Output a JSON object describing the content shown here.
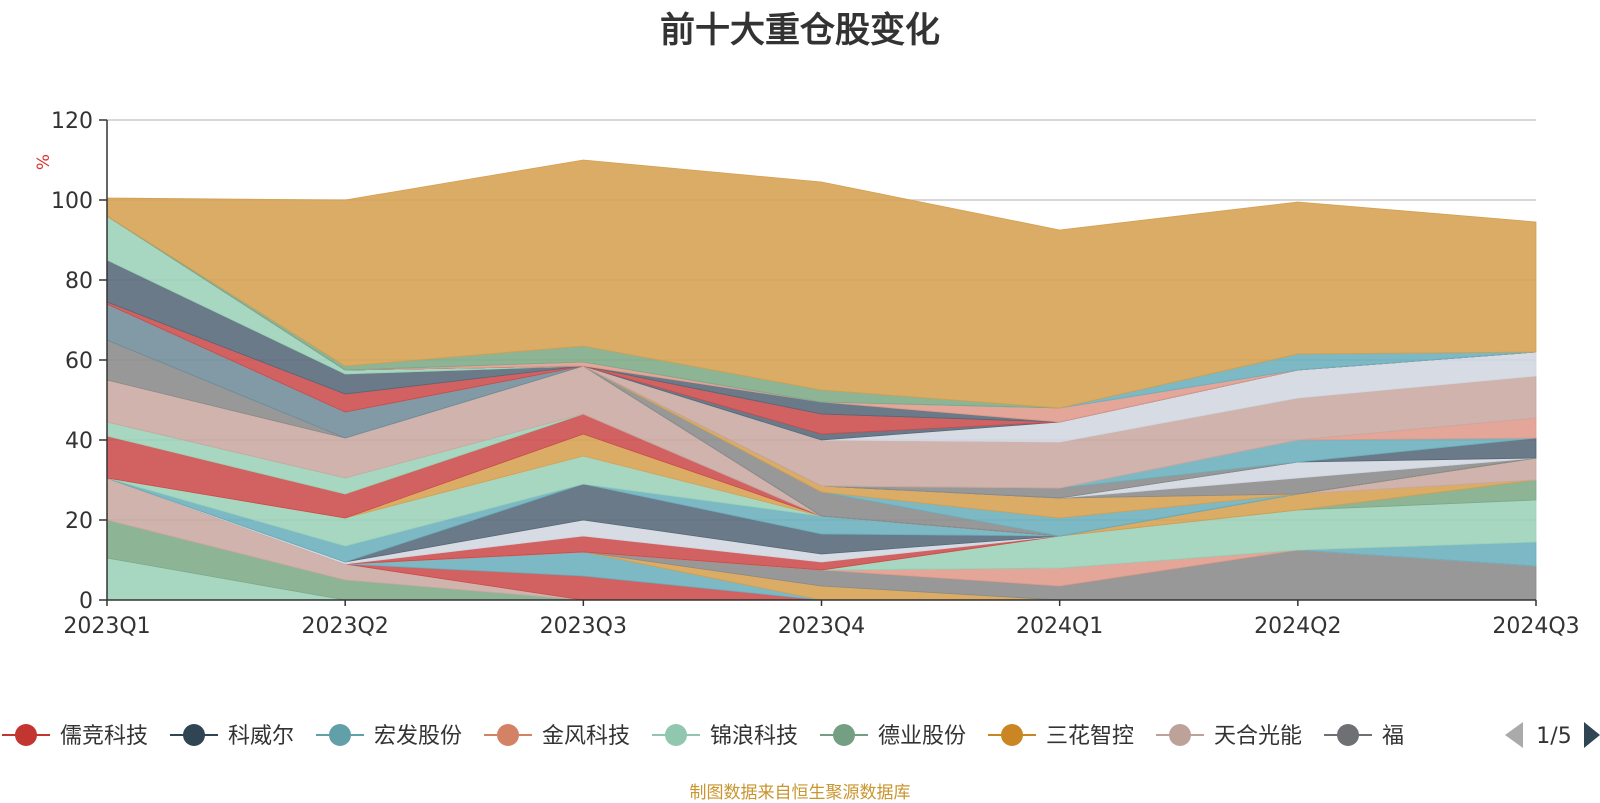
{
  "chart_data": {
    "type": "area",
    "title": "前十大重仓股变化",
    "ylabel": "%",
    "xlabel": "",
    "ylim": [
      0,
      120
    ],
    "yticks": [
      0,
      20,
      40,
      60,
      80,
      100,
      120
    ],
    "grid": true,
    "stacked": true,
    "categories": [
      "2023Q1",
      "2023Q2",
      "2023Q3",
      "2023Q4",
      "2024Q1",
      "2024Q2",
      "2024Q3"
    ],
    "series": [
      {
        "name": "锦浪科技",
        "color": "#9bd2b8",
        "values": [
          10.5,
          0,
          0,
          0,
          0,
          0,
          0
        ]
      },
      {
        "name": "德业股份",
        "color": "#7eaa88",
        "values": [
          9.5,
          5,
          0,
          0,
          0,
          0,
          0
        ]
      },
      {
        "name": "天合光能",
        "color": "#c8a8a0",
        "values": [
          10.5,
          4.0,
          0,
          0,
          0,
          0,
          0
        ]
      },
      {
        "name": "",
        "color": "#cc4c4c",
        "values": [
          0,
          0,
          6,
          0,
          0,
          0,
          0
        ]
      },
      {
        "name": "",
        "color": "#6bafbd",
        "values": [
          0,
          0,
          6,
          0,
          0,
          0,
          0
        ]
      },
      {
        "name": "",
        "color": "#d5a051",
        "values": [
          0,
          0,
          0,
          3.5,
          0,
          0,
          0
        ]
      },
      {
        "name": "",
        "color": "#8a8a8a",
        "values": [
          0,
          0,
          0,
          4,
          3.5,
          12.5,
          8.5
        ]
      },
      {
        "name": "",
        "color": "#e09a8a",
        "values": [
          0,
          0,
          0,
          0,
          4.5,
          0,
          0
        ]
      },
      {
        "name": "",
        "color": "#e09a8a",
        "values": [
          0,
          0,
          0,
          0,
          0,
          0,
          0
        ]
      },
      {
        "name": "",
        "color": "#6bafbd",
        "values": [
          0,
          0,
          0,
          0,
          0,
          0,
          6
        ]
      },
      {
        "name": "",
        "color": "#9bd2b8",
        "values": [
          0,
          0,
          0,
          0,
          8,
          10,
          10.5
        ]
      },
      {
        "name": "",
        "color": "#7eaa88",
        "values": [
          0,
          0,
          0,
          0,
          0,
          0,
          5
        ]
      },
      {
        "name": "",
        "color": "#d5a051",
        "values": [
          0,
          0,
          0,
          0,
          0,
          4,
          0
        ]
      },
      {
        "name": "",
        "color": "#c8a8a0",
        "values": [
          0,
          0,
          0,
          0,
          0,
          0,
          5.5
        ]
      },
      {
        "name": "",
        "color": "#cc4c4c",
        "values": [
          0,
          0,
          4,
          2,
          0,
          0,
          0
        ]
      },
      {
        "name": "",
        "color": "#d0d6e0",
        "values": [
          0,
          0.5,
          4,
          2,
          0,
          0,
          0
        ]
      },
      {
        "name": "",
        "color": "#556877",
        "values": [
          0,
          0,
          9,
          5,
          0,
          0,
          0
        ]
      },
      {
        "name": "",
        "color": "#6bafbd",
        "values": [
          0,
          4,
          0,
          4.5,
          0,
          0,
          0
        ]
      },
      {
        "name": "",
        "color": "#9bd2b8",
        "values": [
          0,
          7,
          7,
          0,
          0,
          0,
          0
        ]
      },
      {
        "name": "",
        "color": "#d5a051",
        "values": [
          0,
          0,
          5.5,
          0,
          0,
          0,
          0
        ]
      },
      {
        "name": "",
        "color": "#cc4c4c",
        "values": [
          10.5,
          6,
          5,
          0,
          0,
          0,
          0
        ]
      },
      {
        "name": "",
        "color": "#9bd2b8",
        "values": [
          3.5,
          4,
          0,
          0,
          0,
          0,
          0
        ]
      },
      {
        "name": "",
        "color": "#c8a8a0",
        "values": [
          10.5,
          10,
          12,
          0,
          0,
          0,
          0
        ]
      },
      {
        "name": "",
        "color": "#8a8a8a",
        "values": [
          10,
          0,
          0,
          0,
          0,
          0,
          0
        ]
      },
      {
        "name": "",
        "color": "#6f8c9a",
        "values": [
          9,
          6.5,
          0,
          0,
          0,
          0,
          0
        ]
      },
      {
        "name": "",
        "color": "#cc4c4c",
        "values": [
          0.5,
          4.5,
          0,
          0,
          0,
          0,
          0
        ]
      },
      {
        "name": "",
        "color": "#556877",
        "values": [
          10.5,
          5,
          0,
          0,
          0,
          0,
          0
        ]
      },
      {
        "name": "",
        "color": "#9bd2b8",
        "values": [
          11,
          1,
          0,
          0,
          0,
          0,
          0
        ]
      },
      {
        "name": "",
        "color": "#8a8a8a",
        "values": [
          0,
          0,
          0,
          6,
          0,
          0,
          0
        ]
      },
      {
        "name": "",
        "color": "#6bafbd",
        "values": [
          0,
          0,
          0,
          0,
          4.5,
          0,
          0
        ]
      },
      {
        "name": "",
        "color": "#d5a051",
        "values": [
          0,
          0,
          0,
          1.5,
          5,
          0,
          0
        ]
      },
      {
        "name": "",
        "color": "#8a8a8a",
        "values": [
          0,
          0,
          0,
          0,
          0,
          4,
          0
        ]
      },
      {
        "name": "",
        "color": "#d0d6e0",
        "values": [
          0,
          0,
          0,
          0,
          0,
          4,
          0
        ]
      },
      {
        "name": "",
        "color": "#556877",
        "values": [
          0,
          0,
          0,
          0,
          0,
          0,
          5
        ]
      },
      {
        "name": "",
        "color": "#8a8a8a",
        "values": [
          0,
          0,
          0,
          0,
          2.5,
          0,
          0
        ]
      },
      {
        "name": "",
        "color": "#6bafbd",
        "values": [
          0,
          0,
          0,
          0,
          0,
          5.5,
          0
        ]
      },
      {
        "name": "",
        "color": "#e09a8a",
        "values": [
          0,
          0,
          0,
          0,
          0,
          0,
          5
        ]
      },
      {
        "name": "",
        "color": "#c8a8a0",
        "values": [
          0,
          0,
          0,
          11.5,
          11.5,
          10.5,
          10.5
        ]
      },
      {
        "name": "",
        "color": "#d0d6e0",
        "values": [
          0,
          0,
          0,
          0,
          5,
          7,
          6
        ]
      },
      {
        "name": "",
        "color": "#556877",
        "values": [
          0,
          0,
          0,
          1.5,
          0,
          0,
          0
        ]
      },
      {
        "name": "",
        "color": "#cc4c4c",
        "values": [
          0,
          0,
          0,
          5,
          0,
          0,
          0
        ]
      },
      {
        "name": "",
        "color": "#556877",
        "values": [
          0,
          0,
          0,
          3,
          0,
          0,
          0
        ]
      },
      {
        "name": "",
        "color": "#e09a8a",
        "values": [
          0,
          0,
          1,
          0,
          3.5,
          0,
          0
        ]
      },
      {
        "name": "",
        "color": "#6bafbd",
        "values": [
          0,
          0,
          0,
          0,
          0,
          4,
          0
        ]
      },
      {
        "name": "",
        "color": "#7eaa88",
        "values": [
          0,
          1,
          4,
          3,
          0,
          0,
          0
        ]
      },
      {
        "name": "",
        "color": "#d5a051",
        "values": [
          4.5,
          41.5,
          46.5,
          52,
          44.5,
          38,
          32.5
        ]
      }
    ]
  },
  "legend": {
    "items": [
      {
        "label": "儒竞科技",
        "color": "#c23531"
      },
      {
        "label": "科威尔",
        "color": "#2f4554"
      },
      {
        "label": "宏发股份",
        "color": "#61a0a8"
      },
      {
        "label": "金风科技",
        "color": "#d48265"
      },
      {
        "label": "锦浪科技",
        "color": "#91c7ae"
      },
      {
        "label": "德业股份",
        "color": "#749f83"
      },
      {
        "label": "三花智控",
        "color": "#ca8622"
      },
      {
        "label": "天合光能",
        "color": "#bda29a"
      },
      {
        "label": "福",
        "color": "#6e7074"
      }
    ],
    "page": "1/5"
  },
  "footer": {
    "source": "制图数据来自恒生聚源数据库"
  }
}
